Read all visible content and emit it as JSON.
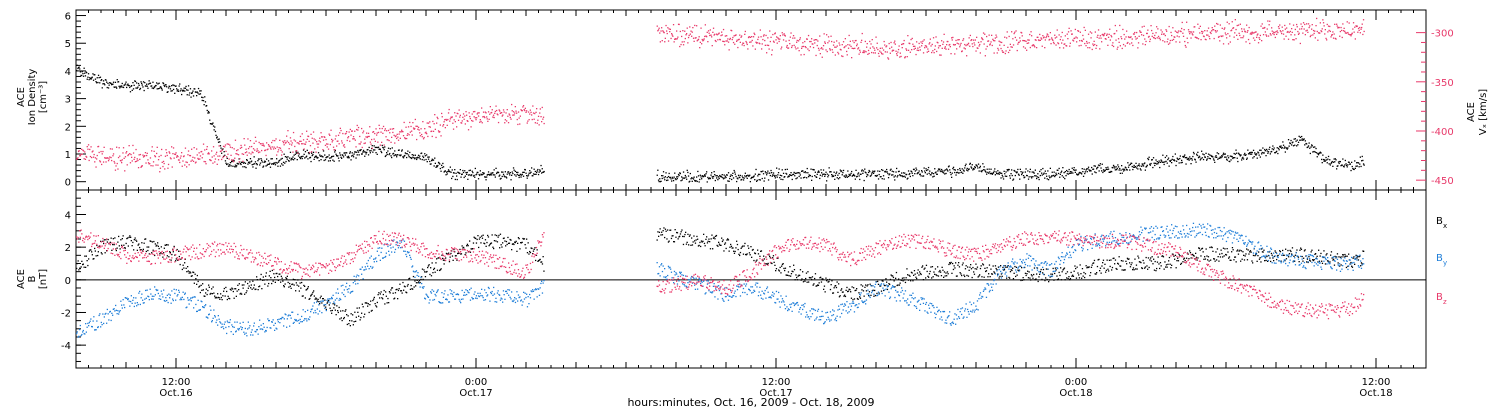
{
  "figure": {
    "xlabel": "hours:minutes, Oct. 16, 2009 - Oct. 18, 2009"
  },
  "colors": {
    "black": "#000000",
    "pink": "#e8396a",
    "blue": "#1f7ed8",
    "axis": "#000000"
  },
  "x_ticks": [
    {
      "hour": 12,
      "time": "12:00",
      "date": "Oct.16"
    },
    {
      "hour": 24,
      "time": "0:00",
      "date": "Oct.17"
    },
    {
      "hour": 36,
      "time": "12:00",
      "date": "Oct.17"
    },
    {
      "hour": 48,
      "time": "0:00",
      "date": "Oct.18"
    },
    {
      "hour": 60,
      "time": "12:00",
      "date": "Oct.18"
    }
  ],
  "chart_data": [
    {
      "type": "scatter",
      "panel": "top",
      "xlim_hours": [
        8,
        62
      ],
      "left_axis": {
        "label_lines": [
          "ACE",
          "Ion Density",
          "[cm⁻³]"
        ],
        "ylim": [
          -0.3,
          6.2
        ],
        "ticks": [
          "0",
          "1",
          "2",
          "3",
          "4",
          "5",
          "6"
        ]
      },
      "right_axis": {
        "label_lines": [
          "ACE",
          "Vₓ [km/s]"
        ],
        "ylim": [
          -460,
          -277
        ],
        "ticks": [
          "-300",
          "-350",
          "-400",
          "-450"
        ],
        "color": "#e8396a"
      },
      "data_gap_hours": [
        26.7,
        31.2
      ],
      "series": [
        {
          "axis": "left",
          "color": "#000000",
          "x": [
            8,
            9,
            10,
            11,
            12,
            13,
            14,
            15,
            16,
            17,
            18,
            19,
            20,
            21,
            22,
            23,
            24,
            25,
            26,
            26.7,
            31.2,
            32,
            33,
            34,
            35,
            36,
            37,
            38,
            39,
            40,
            41,
            42,
            43,
            44,
            45,
            46,
            47,
            48,
            49,
            50,
            51,
            52,
            53,
            54,
            55,
            56,
            57,
            58,
            59,
            59.5
          ],
          "y": [
            4.1,
            3.6,
            3.5,
            3.5,
            3.4,
            3.2,
            0.7,
            0.7,
            0.7,
            1.0,
            0.9,
            1.0,
            1.2,
            1.0,
            0.9,
            0.3,
            0.3,
            0.3,
            0.3,
            0.4,
            0.2,
            0.2,
            0.2,
            0.2,
            0.2,
            0.3,
            0.3,
            0.3,
            0.3,
            0.3,
            0.3,
            0.4,
            0.4,
            0.5,
            0.3,
            0.3,
            0.3,
            0.4,
            0.5,
            0.5,
            0.7,
            0.8,
            0.9,
            0.9,
            1.0,
            1.2,
            1.5,
            0.8,
            0.6,
            0.8
          ]
        },
        {
          "axis": "right",
          "color": "#e8396a",
          "x": [
            8,
            9,
            10,
            11,
            12,
            13,
            14,
            15,
            16,
            17,
            18,
            19,
            20,
            21,
            22,
            23,
            24,
            25,
            26,
            26.7,
            31.2,
            32,
            33,
            34,
            35,
            36,
            37,
            38,
            39,
            40,
            41,
            42,
            43,
            44,
            45,
            46,
            47,
            48,
            49,
            50,
            51,
            52,
            53,
            54,
            55,
            56,
            57,
            58,
            59,
            59.5
          ],
          "y": [
            -423,
            -426,
            -427,
            -428,
            -428,
            -425,
            -420,
            -418,
            -413,
            -410,
            -408,
            -407,
            -404,
            -402,
            -398,
            -390,
            -385,
            -383,
            -382,
            -385,
            -300,
            -302,
            -303,
            -305,
            -307,
            -309,
            -311,
            -312,
            -313,
            -315,
            -315,
            -314,
            -312,
            -311,
            -310,
            -308,
            -307,
            -306,
            -305,
            -304,
            -302,
            -301,
            -300,
            -299,
            -299,
            -298,
            -298,
            -297,
            -297,
            -298
          ]
        }
      ]
    },
    {
      "type": "scatter",
      "panel": "bottom",
      "xlim_hours": [
        8,
        62
      ],
      "left_axis": {
        "label_lines": [
          "ACE",
          "B",
          "[nT]"
        ],
        "ylim": [
          -5.4,
          5.5
        ],
        "ticks": [
          "4",
          "2",
          "0",
          "-2",
          "-4"
        ]
      },
      "zero_line": true,
      "data_gap_hours": [
        26.7,
        31.2
      ],
      "legend": [
        {
          "label": "B",
          "subscript": "x",
          "color": "#000000"
        },
        {
          "label": "B",
          "subscript": "y",
          "color": "#1f7ed8"
        },
        {
          "label": "B",
          "subscript": "z",
          "color": "#e8396a"
        }
      ],
      "series": [
        {
          "name": "Bx",
          "color": "#000000",
          "x": [
            8,
            9,
            10,
            11,
            12,
            13,
            14,
            15,
            16,
            17,
            18,
            19,
            20,
            21,
            22,
            23,
            24,
            25,
            26,
            26.7,
            31.2,
            32,
            33,
            34,
            35,
            36,
            37,
            38,
            39,
            40,
            41,
            42,
            43,
            44,
            45,
            46,
            47,
            48,
            49,
            50,
            51,
            52,
            53,
            54,
            55,
            56,
            57,
            58,
            59,
            59.5
          ],
          "y": [
            0.8,
            2.0,
            2.4,
            2.0,
            1.6,
            -0.5,
            -0.8,
            -0.3,
            0.3,
            -0.5,
            -1.6,
            -2.4,
            -1.2,
            -0.6,
            0.5,
            1.5,
            2.3,
            2.4,
            2.1,
            1.0,
            2.8,
            2.7,
            2.5,
            2.2,
            1.7,
            1.0,
            0.3,
            -0.3,
            -0.8,
            -0.5,
            0.2,
            0.5,
            0.7,
            0.6,
            0.5,
            0.4,
            0.3,
            0.5,
            0.9,
            1.1,
            1.0,
            1.2,
            1.6,
            1.6,
            1.5,
            1.5,
            1.6,
            1.4,
            1.2,
            1.4
          ]
        },
        {
          "name": "By",
          "color": "#1f7ed8",
          "x": [
            8,
            9,
            10,
            11,
            12,
            13,
            14,
            15,
            16,
            17,
            18,
            19,
            20,
            21,
            22,
            23,
            24,
            25,
            26,
            26.7,
            31.2,
            32,
            33,
            34,
            35,
            36,
            37,
            38,
            39,
            40,
            41,
            42,
            43,
            44,
            45,
            46,
            47,
            48,
            49,
            50,
            51,
            52,
            53,
            54,
            55,
            56,
            57,
            58,
            59,
            59.5
          ],
          "y": [
            -3.2,
            -2.4,
            -1.4,
            -0.8,
            -1.0,
            -1.6,
            -2.8,
            -3.0,
            -2.6,
            -2.2,
            -1.4,
            -0.3,
            1.5,
            2.4,
            -1.0,
            -1.0,
            -0.8,
            -0.9,
            -1.2,
            -0.3,
            0.8,
            0.2,
            -0.3,
            -0.9,
            -0.4,
            -1.1,
            -1.8,
            -2.3,
            -1.6,
            -0.5,
            -0.9,
            -1.6,
            -2.4,
            -1.5,
            0.6,
            1.2,
            0.6,
            2.2,
            2.5,
            2.7,
            2.9,
            3.0,
            3.1,
            2.8,
            2.1,
            1.4,
            1.2,
            1.0,
            1.0,
            1.2
          ]
        },
        {
          "name": "Bz",
          "color": "#e8396a",
          "x": [
            8,
            9,
            10,
            11,
            12,
            13,
            14,
            15,
            16,
            17,
            18,
            19,
            20,
            21,
            22,
            23,
            24,
            25,
            26,
            26.7,
            31.2,
            32,
            33,
            34,
            35,
            36,
            37,
            38,
            39,
            40,
            41,
            42,
            43,
            44,
            45,
            46,
            47,
            48,
            49,
            50,
            51,
            52,
            53,
            54,
            55,
            56,
            57,
            58,
            59,
            59.5
          ],
          "y": [
            2.7,
            2.4,
            1.5,
            1.4,
            1.6,
            1.8,
            2.0,
            1.5,
            1.0,
            0.5,
            0.8,
            1.5,
            2.6,
            2.5,
            1.8,
            1.6,
            1.5,
            1.0,
            0.5,
            2.8,
            -0.4,
            -0.2,
            0.0,
            -0.5,
            0.5,
            1.8,
            2.4,
            2.1,
            1.3,
            1.9,
            2.5,
            2.3,
            1.8,
            1.5,
            2.1,
            2.6,
            2.7,
            2.5,
            2.4,
            2.4,
            2.1,
            1.8,
            0.8,
            0.0,
            -0.6,
            -1.5,
            -1.8,
            -1.9,
            -1.7,
            -1.0
          ]
        }
      ]
    }
  ]
}
